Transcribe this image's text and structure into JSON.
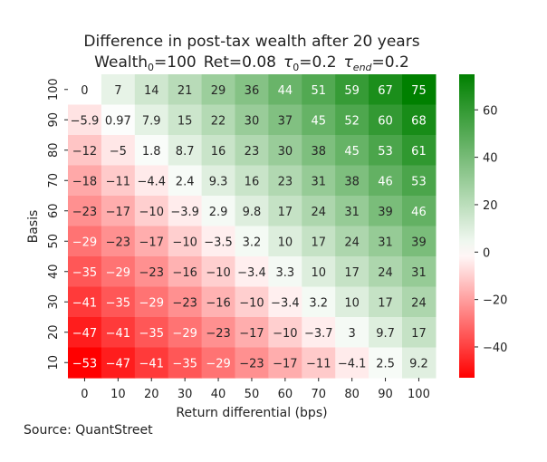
{
  "chart_data": {
    "type": "heatmap",
    "title_line1": "Difference in post-tax wealth after 20 years",
    "title_line2": {
      "wealth_label": "Wealth",
      "wealth_sub": "0",
      "wealth_value": "=100",
      "ret": "Ret=0.08",
      "tau0_symbol": "τ",
      "tau0_sub": "0",
      "tau0_value": "=0.2",
      "tauend_symbol": "τ",
      "tauend_sub": "end",
      "tauend_value": "=0.2"
    },
    "xlabel": "Return differential (bps)",
    "ylabel": "Basis",
    "x_categories": [
      "0",
      "10",
      "20",
      "30",
      "40",
      "50",
      "60",
      "70",
      "80",
      "90",
      "100"
    ],
    "y_categories": [
      "100",
      "90",
      "80",
      "70",
      "60",
      "50",
      "40",
      "30",
      "20",
      "10"
    ],
    "values": [
      [
        0,
        7,
        14,
        21,
        29,
        36,
        44,
        51,
        59,
        67,
        75
      ],
      [
        -5.9,
        0.97,
        7.9,
        15,
        22,
        30,
        37,
        45,
        52,
        60,
        68
      ],
      [
        -12,
        -5,
        1.8,
        8.7,
        16,
        23,
        30,
        38,
        45,
        53,
        61
      ],
      [
        -18,
        -11,
        -4.4,
        2.4,
        9.3,
        16,
        23,
        31,
        38,
        46,
        53
      ],
      [
        -23,
        -17,
        -10,
        -3.9,
        2.9,
        9.8,
        17,
        24,
        31,
        39,
        46
      ],
      [
        -29,
        -23,
        -17,
        -10,
        -3.5,
        3.2,
        10,
        17,
        24,
        31,
        39
      ],
      [
        -35,
        -29,
        -23,
        -16,
        -10,
        -3.4,
        3.3,
        10,
        17,
        24,
        31
      ],
      [
        -41,
        -35,
        -29,
        -23,
        -16,
        -10,
        -3.4,
        3.2,
        10,
        17,
        24
      ],
      [
        -47,
        -41,
        -35,
        -29,
        -23,
        -17,
        -10,
        -3.7,
        3,
        9.7,
        17
      ],
      [
        -53,
        -47,
        -41,
        -35,
        -29,
        -23,
        -17,
        -11,
        -4.1,
        2.5,
        9.2
      ]
    ],
    "color_range": [
      -53,
      75
    ],
    "colors": {
      "low": "#ff0000",
      "mid": "#ffffff",
      "high": "#008000"
    },
    "colorbar_ticks": [
      "60",
      "40",
      "20",
      "0",
      "−20",
      "−40"
    ],
    "colorbar_tick_values": [
      60,
      40,
      20,
      0,
      -20,
      -40
    ]
  },
  "source": "Source: QuantStreet"
}
